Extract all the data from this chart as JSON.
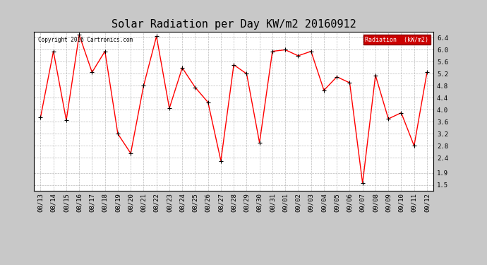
{
  "title": "Solar Radiation per Day KW/m2 20160912",
  "copyright": "Copyright 2016 Cartronics.com",
  "legend_label": "Radiation  (kW/m2)",
  "dates": [
    "08/13",
    "08/14",
    "08/15",
    "08/16",
    "08/17",
    "08/18",
    "08/19",
    "08/20",
    "08/21",
    "08/22",
    "08/23",
    "08/24",
    "08/25",
    "08/26",
    "08/27",
    "08/28",
    "08/29",
    "08/30",
    "08/31",
    "09/01",
    "09/02",
    "09/03",
    "09/04",
    "09/05",
    "09/06",
    "09/07",
    "09/08",
    "09/09",
    "09/10",
    "09/11",
    "09/12"
  ],
  "values": [
    3.75,
    5.95,
    3.65,
    6.5,
    5.25,
    5.95,
    3.2,
    2.55,
    4.8,
    6.45,
    4.05,
    5.4,
    4.75,
    4.25,
    2.3,
    5.5,
    5.2,
    2.9,
    5.95,
    6.0,
    5.8,
    5.95,
    4.65,
    5.1,
    4.9,
    1.55,
    5.15,
    3.7,
    3.9,
    2.8,
    5.25
  ],
  "yticks": [
    1.5,
    1.9,
    2.4,
    2.8,
    3.2,
    3.6,
    4.0,
    4.4,
    4.8,
    5.2,
    5.6,
    6.0,
    6.4
  ],
  "ylim": [
    1.3,
    6.6
  ],
  "line_color": "#ff0000",
  "marker_color": "#000000",
  "bg_color": "#c8c8c8",
  "plot_bg_color": "#ffffff",
  "grid_color": "#aaaaaa",
  "title_fontsize": 11,
  "tick_fontsize": 6.5,
  "legend_bg": "#cc0000",
  "legend_text_color": "#ffffff"
}
